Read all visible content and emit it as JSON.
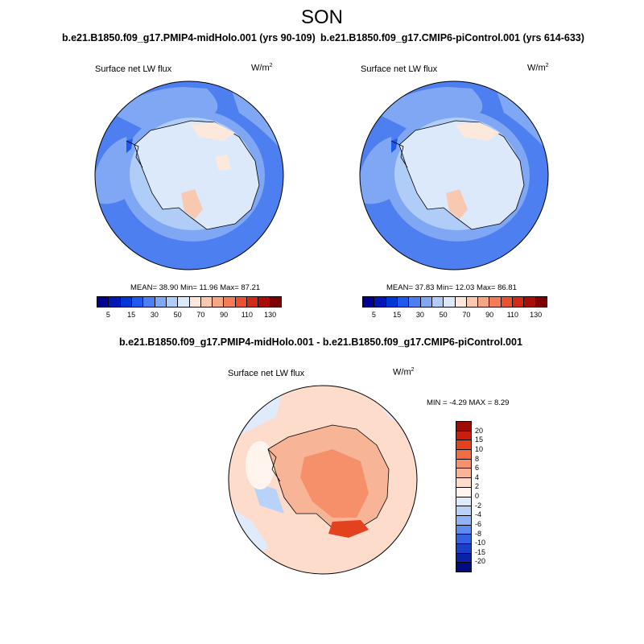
{
  "season": "SON",
  "panels": [
    {
      "title": "b.e21.B1850.f09_g17.PMIP4-midHolo.001 (yrs 90-109)",
      "variable": "Surface net LW flux",
      "units_base": "W/m",
      "units_sup": "2",
      "stats": "MEAN=  38.90  Min=  11.96  Max=  87.21"
    },
    {
      "title": "b.e21.B1850.f09_g17.CMIP6-piControl.001 (yrs 614-633)",
      "variable": "Surface net LW flux",
      "units_base": "W/m",
      "units_sup": "2",
      "stats": "MEAN=  37.83  Min=  12.03  Max=  86.81"
    }
  ],
  "diff_panel": {
    "title": "b.e21.B1850.f09_g17.PMIP4-midHolo.001 - b.e21.B1850.f09_g17.CMIP6-piControl.001",
    "variable": "Surface net LW flux",
    "units_base": "W/m",
    "units_sup": "2",
    "stats": "MIN =  -4.29 MAX =   8.29"
  },
  "colorbar_abs": {
    "colors": [
      "#00008e",
      "#0017b4",
      "#0035d8",
      "#1f59f0",
      "#4e7ff0",
      "#7fa7f4",
      "#b0cdf7",
      "#dce9fb",
      "#fde9dc",
      "#f8c9b0",
      "#f5a683",
      "#f27c55",
      "#e9522f",
      "#cf2c17",
      "#a80d07",
      "#7d0000"
    ],
    "labels": [
      "5",
      "15",
      "30",
      "50",
      "70",
      "90",
      "110",
      "130"
    ]
  },
  "colorbar_diff": {
    "colors": [
      "#9d0d05",
      "#c81e0f",
      "#e4421f",
      "#f26c44",
      "#f5906b",
      "#f8b496",
      "#fddccb",
      "#fff5ee",
      "#dfebfb",
      "#b9d2f8",
      "#8fb3f4",
      "#5d8bf0",
      "#3361e4",
      "#1a3fc9",
      "#0a22a7",
      "#000c7e"
    ],
    "labels": [
      "20",
      "15",
      "10",
      "8",
      "6",
      "4",
      "2",
      "0",
      "-2",
      "-4",
      "-6",
      "-8",
      "-10",
      "-15",
      "-20"
    ]
  },
  "map_data": {
    "projection": "south-polar stereographic",
    "region": "Antarctica / Southern Ocean",
    "background_colors": {
      "abs_ocean": "#4e7ff0",
      "abs_ocean_inner": "#7fa7f4",
      "abs_ice": "#dce9fb",
      "abs_warm": "#fde9dc",
      "diff_outer": "#fddccb",
      "diff_inner": "#f5906b"
    }
  }
}
